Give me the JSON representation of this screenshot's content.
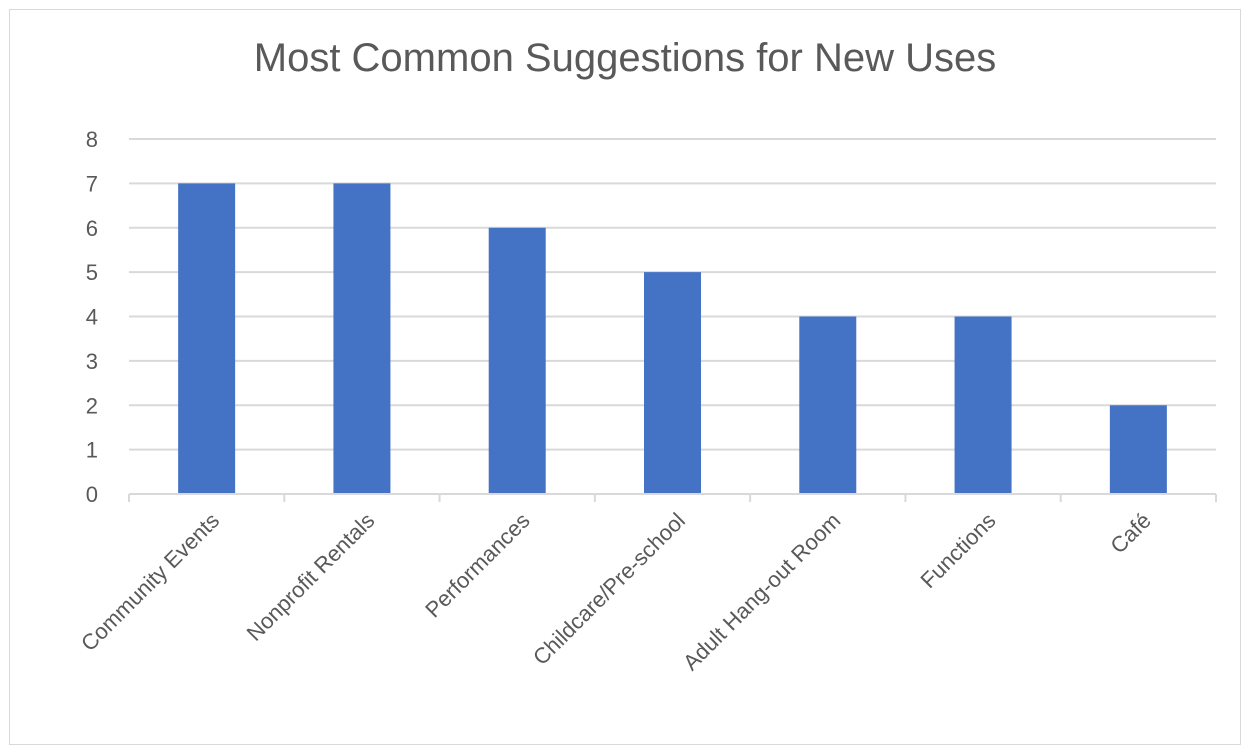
{
  "chart_data": {
    "type": "bar",
    "title": "Most Common Suggestions for New Uses",
    "xlabel": "",
    "ylabel": "",
    "categories": [
      "Community Events",
      "Nonprofit Rentals",
      "Performances",
      "Childcare/Pre-school",
      "Adult Hang-out Room",
      "Functions",
      "Café"
    ],
    "values": [
      7,
      7,
      6,
      5,
      4,
      4,
      2
    ],
    "ylim": [
      0,
      8
    ],
    "yticks": [
      "0",
      "1",
      "2",
      "3",
      "4",
      "5",
      "6",
      "7",
      "8"
    ],
    "grid": true,
    "legend": "none",
    "colors": {
      "bar": "#4472c4",
      "grid": "#d9d9d9",
      "text": "#595959"
    }
  }
}
